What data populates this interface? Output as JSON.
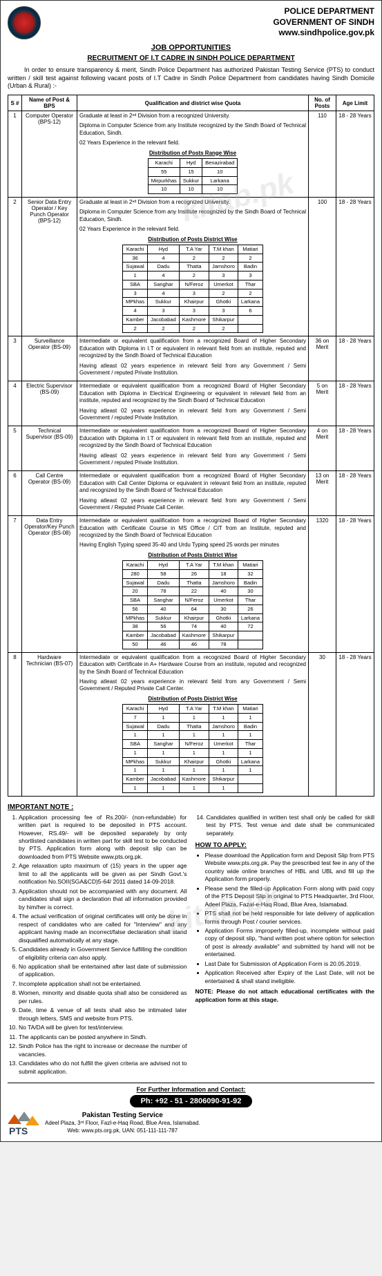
{
  "header": {
    "dept": "POLICE DEPARTMENT",
    "govt": "GOVERNMENT OF SINDH",
    "site": "www.sindhpolice.gov.pk"
  },
  "titles": {
    "opportunities": "JOB OPPORTUNITIES",
    "recruitment": "RECRUITMENT OF I.T CADRE IN SINDH POLICE DEPARTMENT"
  },
  "intro": "In order to ensure transparency & merit, Sindh Police Department has authorized Pakistan Testing Service (PTS) to conduct written / skill test against following vacant posts of I.T Cadre in Sindh Police Department from candidates having Sindh Domicile (Urban & Rural) :-",
  "table_headers": {
    "sno": "S #",
    "name": "Name of Post & BPS",
    "qual": "Qualification and district wise Quota",
    "posts": "No. of Posts",
    "age": "Age Limit"
  },
  "rows": [
    {
      "sno": "1",
      "name": "Computer Operator (BPS-12)",
      "posts": "110",
      "age": "18 - 28 Years",
      "qual_paras": [
        "Graduate at least in 2ⁿᵈ Division from a recognized University.",
        "Diploma in Computer Science from any Institute recognized by the Sindh Board of Technical Education, Sindh.",
        "02 Years Experience in the relevant field."
      ],
      "dist_caption": "Distribution of Posts Range Wise",
      "dist": [
        [
          "Karachi",
          "Hyd",
          "Benazirabad"
        ],
        [
          "55",
          "15",
          "10"
        ],
        [
          "Mirpurkhas",
          "Sukkur",
          "Larkana"
        ],
        [
          "10",
          "10",
          "10"
        ]
      ]
    },
    {
      "sno": "2",
      "name": "Senior Data Entry Operator / Key Punch Operator (BPS-12)",
      "posts": "100",
      "age": "18 - 28 Years",
      "qual_paras": [
        "Graduate at least in 2ⁿᵈ Division from a recognized University.",
        "Diploma in Computer Science from any Institute recognized by the Sindh Board of Technical Education, Sindh.",
        "02 Years Experience in the relevant field."
      ],
      "dist_caption": "Distribution of Posts District Wise",
      "dist": [
        [
          "Karachi",
          "Hyd",
          "T.A Yar",
          "T.M khan",
          "Matiari"
        ],
        [
          "36",
          "4",
          "2",
          "2",
          "2"
        ],
        [
          "Sujawal",
          "Dadu",
          "Thatta",
          "Jamshoro",
          "Badin"
        ],
        [
          "1",
          "4",
          "2",
          "3",
          "3"
        ],
        [
          "SBA",
          "Sanghar",
          "N/Feroz",
          "Umerkot",
          "Thar"
        ],
        [
          "3",
          "4",
          "3",
          "2",
          "2"
        ],
        [
          "MPkhas",
          "Sukkur",
          "Khairpur",
          "Ghotki",
          "Larkana"
        ],
        [
          "4",
          "3",
          "3",
          "3",
          "6"
        ],
        [
          "Kamber",
          "Jacobabad",
          "Kashmore",
          "Shikarpur",
          ""
        ],
        [
          "2",
          "2",
          "2",
          "2",
          ""
        ]
      ]
    },
    {
      "sno": "3",
      "name": "Surveillance Operator (BS-09)",
      "posts": "36 on Merit",
      "age": "18 - 28 Years",
      "qual_paras": [
        "Intermediate or equivalent qualification from a recognized Board of Higher Secondary Education with Diploma in I.T or equivalent in relevant field from an institute, reputed and recognized by the Sindh Board of Technical Education",
        "Having atleast 02 years experience in relevant field from any Government / Semi Government / reputed Private Institution."
      ]
    },
    {
      "sno": "4",
      "name": "Electric Supervisor (BS-09)",
      "posts": "5 on Merit",
      "age": "18 - 28 Years",
      "qual_paras": [
        "Intermediate or equivalent qualification from a recognized Board of Higher Secondary Education with Diploma in Electrical Engineering or equivalent in relevant field from an institute, reputed and recognized by the Sindh Board of Technical Education",
        "Having atleast 02 years experience in relevant field from any Government / Semi Government / reputed Private Institution."
      ]
    },
    {
      "sno": "5",
      "name": "Technical Supervisor (BS-09)",
      "posts": "4 on Merit",
      "age": "18 - 28 Years",
      "qual_paras": [
        "Intermediate or equivalent qualification from a recognized Board of Higher Secondary Education with Diploma in I.T or equivalent in relevant field from an institute, reputed and recognized by the Sindh Board of Technical Education",
        "Having atleast 02 years experience in relevant field from any Government / Semi Government / reputed Private Institution."
      ]
    },
    {
      "sno": "6",
      "name": "Call Centre Operator (BS-09)",
      "posts": "13 on Merit",
      "age": "18 - 28 Years",
      "qual_paras": [
        "Intermediate or equivalent qualification from a recognized Board of Higher Secondary Education with Call Center Diploma or equivalent in relevant field from an institute, reputed and recognized by the Sindh Board of Technical Education",
        "Having atleast 02 years experience in relevant field from any Government / Semi Government / Reputed Private Call Center."
      ]
    },
    {
      "sno": "7",
      "name": "Data Entry Operator/Key Punch Operator (BS-08)",
      "posts": "1320",
      "age": "18 - 28 Years",
      "qual_paras": [
        "Intermediate or equivalent qualification from a recognized Board of Higher Secondary Education with Certificate Course in MS Office / CIT from an Institute, reputed and recognized by the Sindh Board of Technical Education",
        "Having English Typing speed 35-40 and Urdu Typing speed 25 words per minutes"
      ],
      "dist_caption": "Distribution of Posts District Wise",
      "dist": [
        [
          "Karachi",
          "Hyd",
          "T.A Yar",
          "T.M khan",
          "Matiari"
        ],
        [
          "280",
          "58",
          "26",
          "18",
          "32"
        ],
        [
          "Sujawal",
          "Dadu",
          "Thatta",
          "Jamshoro",
          "Badin"
        ],
        [
          "20",
          "78",
          "22",
          "40",
          "30"
        ],
        [
          "SBA",
          "Sanghar",
          "N/Feroz",
          "Umerkot",
          "Thar"
        ],
        [
          "56",
          "40",
          "64",
          "30",
          "26"
        ],
        [
          "MPkhas",
          "Sukkur",
          "Khairpur",
          "Ghotki",
          "Larkana"
        ],
        [
          "38",
          "56",
          "74",
          "40",
          "72"
        ],
        [
          "Kamber",
          "Jacobabad",
          "Kashmore",
          "Shikarpur",
          ""
        ],
        [
          "50",
          "46",
          "46",
          "78",
          ""
        ]
      ]
    },
    {
      "sno": "8",
      "name": "Hardware Technician (BS-07)",
      "posts": "30",
      "age": "18 - 28 Years",
      "qual_paras": [
        "Intermediate or equivalent qualification from a recognized Board of Higher Secondary Education with Certificate in A+ Hardware Course from an institute, reputed and recognized by the Sindh Board of Technical Education",
        "Having atleast 02 years experience in relevant field from any Government / Semi Government / Reputed Private Call Center."
      ],
      "dist_caption": "Distribution of Posts District Wise",
      "dist": [
        [
          "Karachi",
          "Hyd",
          "T.A Yar",
          "T.M khan",
          "Matiari"
        ],
        [
          "7",
          "1",
          "1",
          "1",
          "1"
        ],
        [
          "Sujawal",
          "Dadu",
          "Thatta",
          "Jamshoro",
          "Badin"
        ],
        [
          "1",
          "1",
          "1",
          "1",
          "1"
        ],
        [
          "SBA",
          "Sanghar",
          "N/Feroz",
          "Umerkot",
          "Thar"
        ],
        [
          "1",
          "1",
          "1",
          "1",
          "1"
        ],
        [
          "MPkhas",
          "Sukkur",
          "Khairpur",
          "Ghotki",
          "Larkana"
        ],
        [
          "1",
          "1",
          "1",
          "1",
          "1"
        ],
        [
          "Kamber",
          "Jacobabad",
          "Kashmore",
          "Shikarpur",
          ""
        ],
        [
          "1",
          "1",
          "1",
          "1",
          ""
        ]
      ]
    }
  ],
  "important_label": "IMPORTANT NOTE :",
  "notes_left": [
    "Application processing fee of Rs.200/- (non-refundable) for written part is required to be deposited in PTS account. However, RS.49/- will be deposited separately by only shortlisted candidates in written part for skill test to be conducted by PTS. Application form along with deposit slip can be downloaded from PTS Website www.pts.org.pk.",
    "Age relaxation upto maximum of (15) years in the upper age limit to all the applicants will be given as per Sindh Govt.'s notification No.SOII(SGA&CD)5-64/ 2011 dated 14-09-2018.",
    "Application should not be accompanied with any document. All candidates shall sign a declaration that all information provided by him/her is correct.",
    "The actual verification of original certificates will only be done in respect of candidates who are called for \"Interview\" and any applicant having made an incorrect/false declaration shall stand disqualified automatically at any stage.",
    "Candidates already in Government Service fulfilling the condition of eligibility criteria can also apply.",
    "No application shall be entertained after last date of submission of application.",
    "Incomplete application shall not be entertained.",
    "Women, minority and disable quota shall also be considered as per rules.",
    "Date, time & venue of all tests shall also be intimated later through letters, SMS and website from PTS.",
    "No TA/DA will be given for test/interview.",
    "The applicants can be posted anywhere in Sindh.",
    "Sindh Police has the right to increase or decrease the number of vacancies.",
    "Candidates who do not fulfill the given criteria are advised not to submit application."
  ],
  "note14": "Candidates qualified in written test shall only be called for skill test by PTS. Test venue and date shall be communicated separately.",
  "howto_label": "HOW TO APPLY:",
  "howto_items": [
    "Please download the Application form and Deposit Slip from PTS Website www.pts.org.pk. Pay the prescribed test fee in any of the country wide online branches of HBL and UBL and fill up the Application form properly.",
    "Please send the filled-up Application Form along with paid copy of the PTS Deposit Slip in original to PTS Headquarter, 3rd Floor, Adeel Plaza, Fazal-e-Haq Road, Blue Area, Islamabad.",
    "PTS shall not be held responsible for late delivery of application forms through Post / courier services.",
    "Application Forms improperly filled-up, incomplete without paid copy of deposit slip, \"hand written post where option for selection of post is already available\" and submitted by hand will not be entertained.",
    "Last Date for Submission of Application Form is 20.05.2019.",
    "Application Received after Expiry of the Last Date, will not be entertained & shall stand ineligible."
  ],
  "howto_note": "NOTE: Please do not attach educational certificates with the application form at this stage.",
  "footer": {
    "contact_label": "For Further Information and Contact:",
    "phone": "Ph: +92 - 51 - 2806090-91-92",
    "org": "Pakistan Testing Service",
    "addr": "Adeel Plaza, 3ʳᵈ Floor, Fazl-e-Haq Road, Blue Area, Islamabad.",
    "web": "Web: www.pts.org.pk, UAN: 051-111-111-787",
    "pts_text": "PTS"
  },
  "watermark": "kitab.pk"
}
